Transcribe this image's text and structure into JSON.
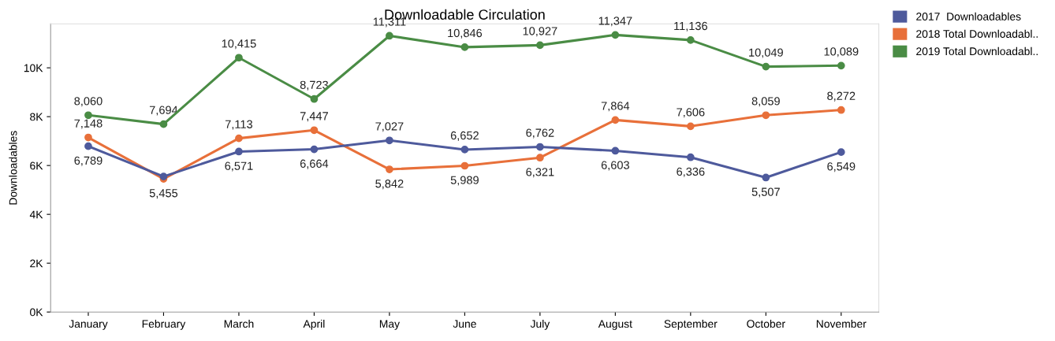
{
  "chart_data": {
    "type": "line",
    "title": "Downloadable Circulation",
    "ylabel": "Downloadables",
    "categories": [
      "January",
      "February",
      "March",
      "April",
      "May",
      "June",
      "July",
      "August",
      "September",
      "October",
      "November"
    ],
    "series": [
      {
        "name": "2017  Downloadables",
        "color": "#4e5a9c",
        "values": [
          6789,
          5550,
          6571,
          6664,
          7027,
          6652,
          6762,
          6603,
          6336,
          5507,
          6549
        ],
        "value_labels": [
          "6,789",
          null,
          "6,571",
          "6,664",
          "7,027",
          "6,652",
          "6,762",
          "6,603",
          "6,336",
          "5,507",
          "6,549"
        ]
      },
      {
        "name": "2018 Total Downloadabl..",
        "color": "#e8703a",
        "values": [
          7148,
          5455,
          7113,
          7447,
          5842,
          5989,
          6321,
          7864,
          7606,
          8059,
          8272
        ],
        "value_labels": [
          "7,148",
          "5,455",
          "7,113",
          "7,447",
          "5,842",
          "5,989",
          "6,321",
          "7,864",
          "7,606",
          "8,059",
          "8,272"
        ]
      },
      {
        "name": "2019 Total Downloadabl..",
        "color": "#4a8c45",
        "values": [
          8060,
          7694,
          10415,
          8723,
          11311,
          10846,
          10927,
          11347,
          11136,
          10049,
          10089
        ],
        "value_labels": [
          "8,060",
          "7,694",
          "10,415",
          "8,723",
          "11,311",
          "10,846",
          "10,927",
          "11,347",
          "11,136",
          "10,049",
          "10,089"
        ]
      }
    ],
    "ylim": [
      0,
      11800
    ],
    "yticks": [
      {
        "value": 0,
        "label": "0K"
      },
      {
        "value": 2000,
        "label": "2K"
      },
      {
        "value": 4000,
        "label": "4K"
      },
      {
        "value": 6000,
        "label": "6K"
      },
      {
        "value": 8000,
        "label": "8K"
      },
      {
        "value": 10000,
        "label": "10K"
      }
    ],
    "marker": "circle",
    "line_style": "solid",
    "legend": "top right",
    "grid": false
  }
}
